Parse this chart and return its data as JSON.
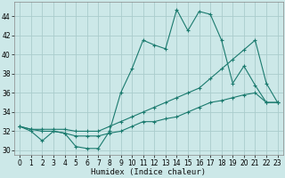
{
  "xlabel": "Humidex (Indice chaleur)",
  "bg_color": "#cce8e8",
  "grid_color": "#aacccc",
  "line_color": "#1a7a6e",
  "xlim": [
    -0.5,
    23.5
  ],
  "ylim": [
    29.5,
    45.5
  ],
  "xticks": [
    0,
    1,
    2,
    3,
    4,
    5,
    6,
    7,
    8,
    9,
    10,
    11,
    12,
    13,
    14,
    15,
    16,
    17,
    18,
    19,
    20,
    21,
    22,
    23
  ],
  "yticks": [
    30,
    32,
    34,
    36,
    38,
    40,
    42,
    44
  ],
  "line1_x": [
    0,
    1,
    2,
    3,
    4,
    5,
    6,
    7,
    8,
    9,
    10,
    11,
    12,
    13,
    14,
    15,
    16,
    17,
    18,
    19,
    20,
    21,
    22,
    23
  ],
  "line1_y": [
    32.5,
    32.0,
    31.0,
    32.0,
    31.8,
    30.4,
    30.2,
    30.2,
    32.0,
    36.0,
    38.5,
    41.5,
    41.0,
    40.6,
    44.7,
    42.5,
    44.5,
    44.2,
    41.5,
    37.0,
    38.8,
    36.8,
    35.0,
    35.0
  ],
  "line2_x": [
    0,
    1,
    2,
    3,
    4,
    5,
    6,
    7,
    8,
    9,
    10,
    11,
    12,
    13,
    14,
    15,
    16,
    17,
    18,
    19,
    20,
    21,
    22,
    23
  ],
  "line2_y": [
    32.5,
    32.2,
    32.0,
    32.0,
    31.8,
    31.5,
    31.5,
    31.5,
    31.8,
    32.0,
    32.5,
    33.0,
    33.0,
    33.3,
    33.5,
    34.0,
    34.5,
    35.0,
    35.2,
    35.5,
    35.8,
    36.0,
    35.0,
    35.0
  ],
  "line3_x": [
    0,
    1,
    2,
    3,
    4,
    5,
    6,
    7,
    8,
    9,
    10,
    11,
    12,
    13,
    14,
    15,
    16,
    17,
    18,
    19,
    20,
    21,
    22,
    23
  ],
  "line3_y": [
    32.5,
    32.2,
    32.2,
    32.2,
    32.2,
    32.0,
    32.0,
    32.0,
    32.5,
    33.0,
    33.5,
    34.0,
    34.5,
    35.0,
    35.5,
    36.0,
    36.5,
    37.5,
    38.5,
    39.5,
    40.5,
    41.5,
    37.0,
    35.0
  ],
  "markersize": 3,
  "linewidth": 0.8
}
